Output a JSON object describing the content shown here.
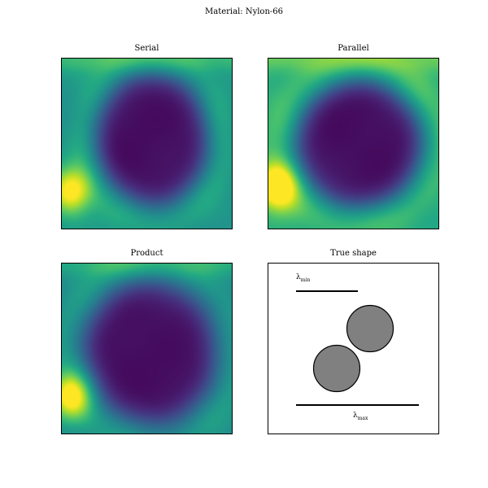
{
  "figure": {
    "suptitle": "Material: Nylon-66"
  },
  "chart_data": [
    {
      "type": "heatmap",
      "title": "Serial",
      "colormap": "viridis",
      "description_values": {
        "center_blob": "low (dark purple)",
        "border": "mid (teal/green)",
        "hot_spot_left": "high (yellow)"
      },
      "model": {
        "blob_cx": 0.53,
        "blob_cy": 0.47,
        "blob_rx": 0.33,
        "blob_ry": 0.39,
        "hot_x": 0.05,
        "hot_y": 0.78,
        "hot_amp": 0.55,
        "base": 0.5
      }
    },
    {
      "type": "heatmap",
      "title": "Parallel",
      "colormap": "viridis",
      "model": {
        "blob_cx": 0.53,
        "blob_cy": 0.5,
        "blob_rx": 0.38,
        "blob_ry": 0.38,
        "hot_x": 0.05,
        "hot_y": 0.75,
        "hot_amp": 0.6,
        "base": 0.6
      }
    },
    {
      "type": "heatmap",
      "title": "Product",
      "colormap": "viridis",
      "model": {
        "blob_cx": 0.52,
        "blob_cy": 0.52,
        "blob_rx": 0.39,
        "blob_ry": 0.42,
        "hot_x": 0.05,
        "hot_y": 0.78,
        "hot_amp": 0.55,
        "base": 0.45
      }
    },
    {
      "type": "diagram",
      "title": "True shape",
      "lambda_min_label": "λ",
      "lambda_min_sub": "min",
      "lambda_max_label": "λ",
      "lambda_max_sub": "max",
      "circle_fill": "#808080"
    }
  ],
  "colors": {
    "viridis_low": "#440154",
    "viridis_mid": "#21908d",
    "viridis_high": "#fde725"
  }
}
